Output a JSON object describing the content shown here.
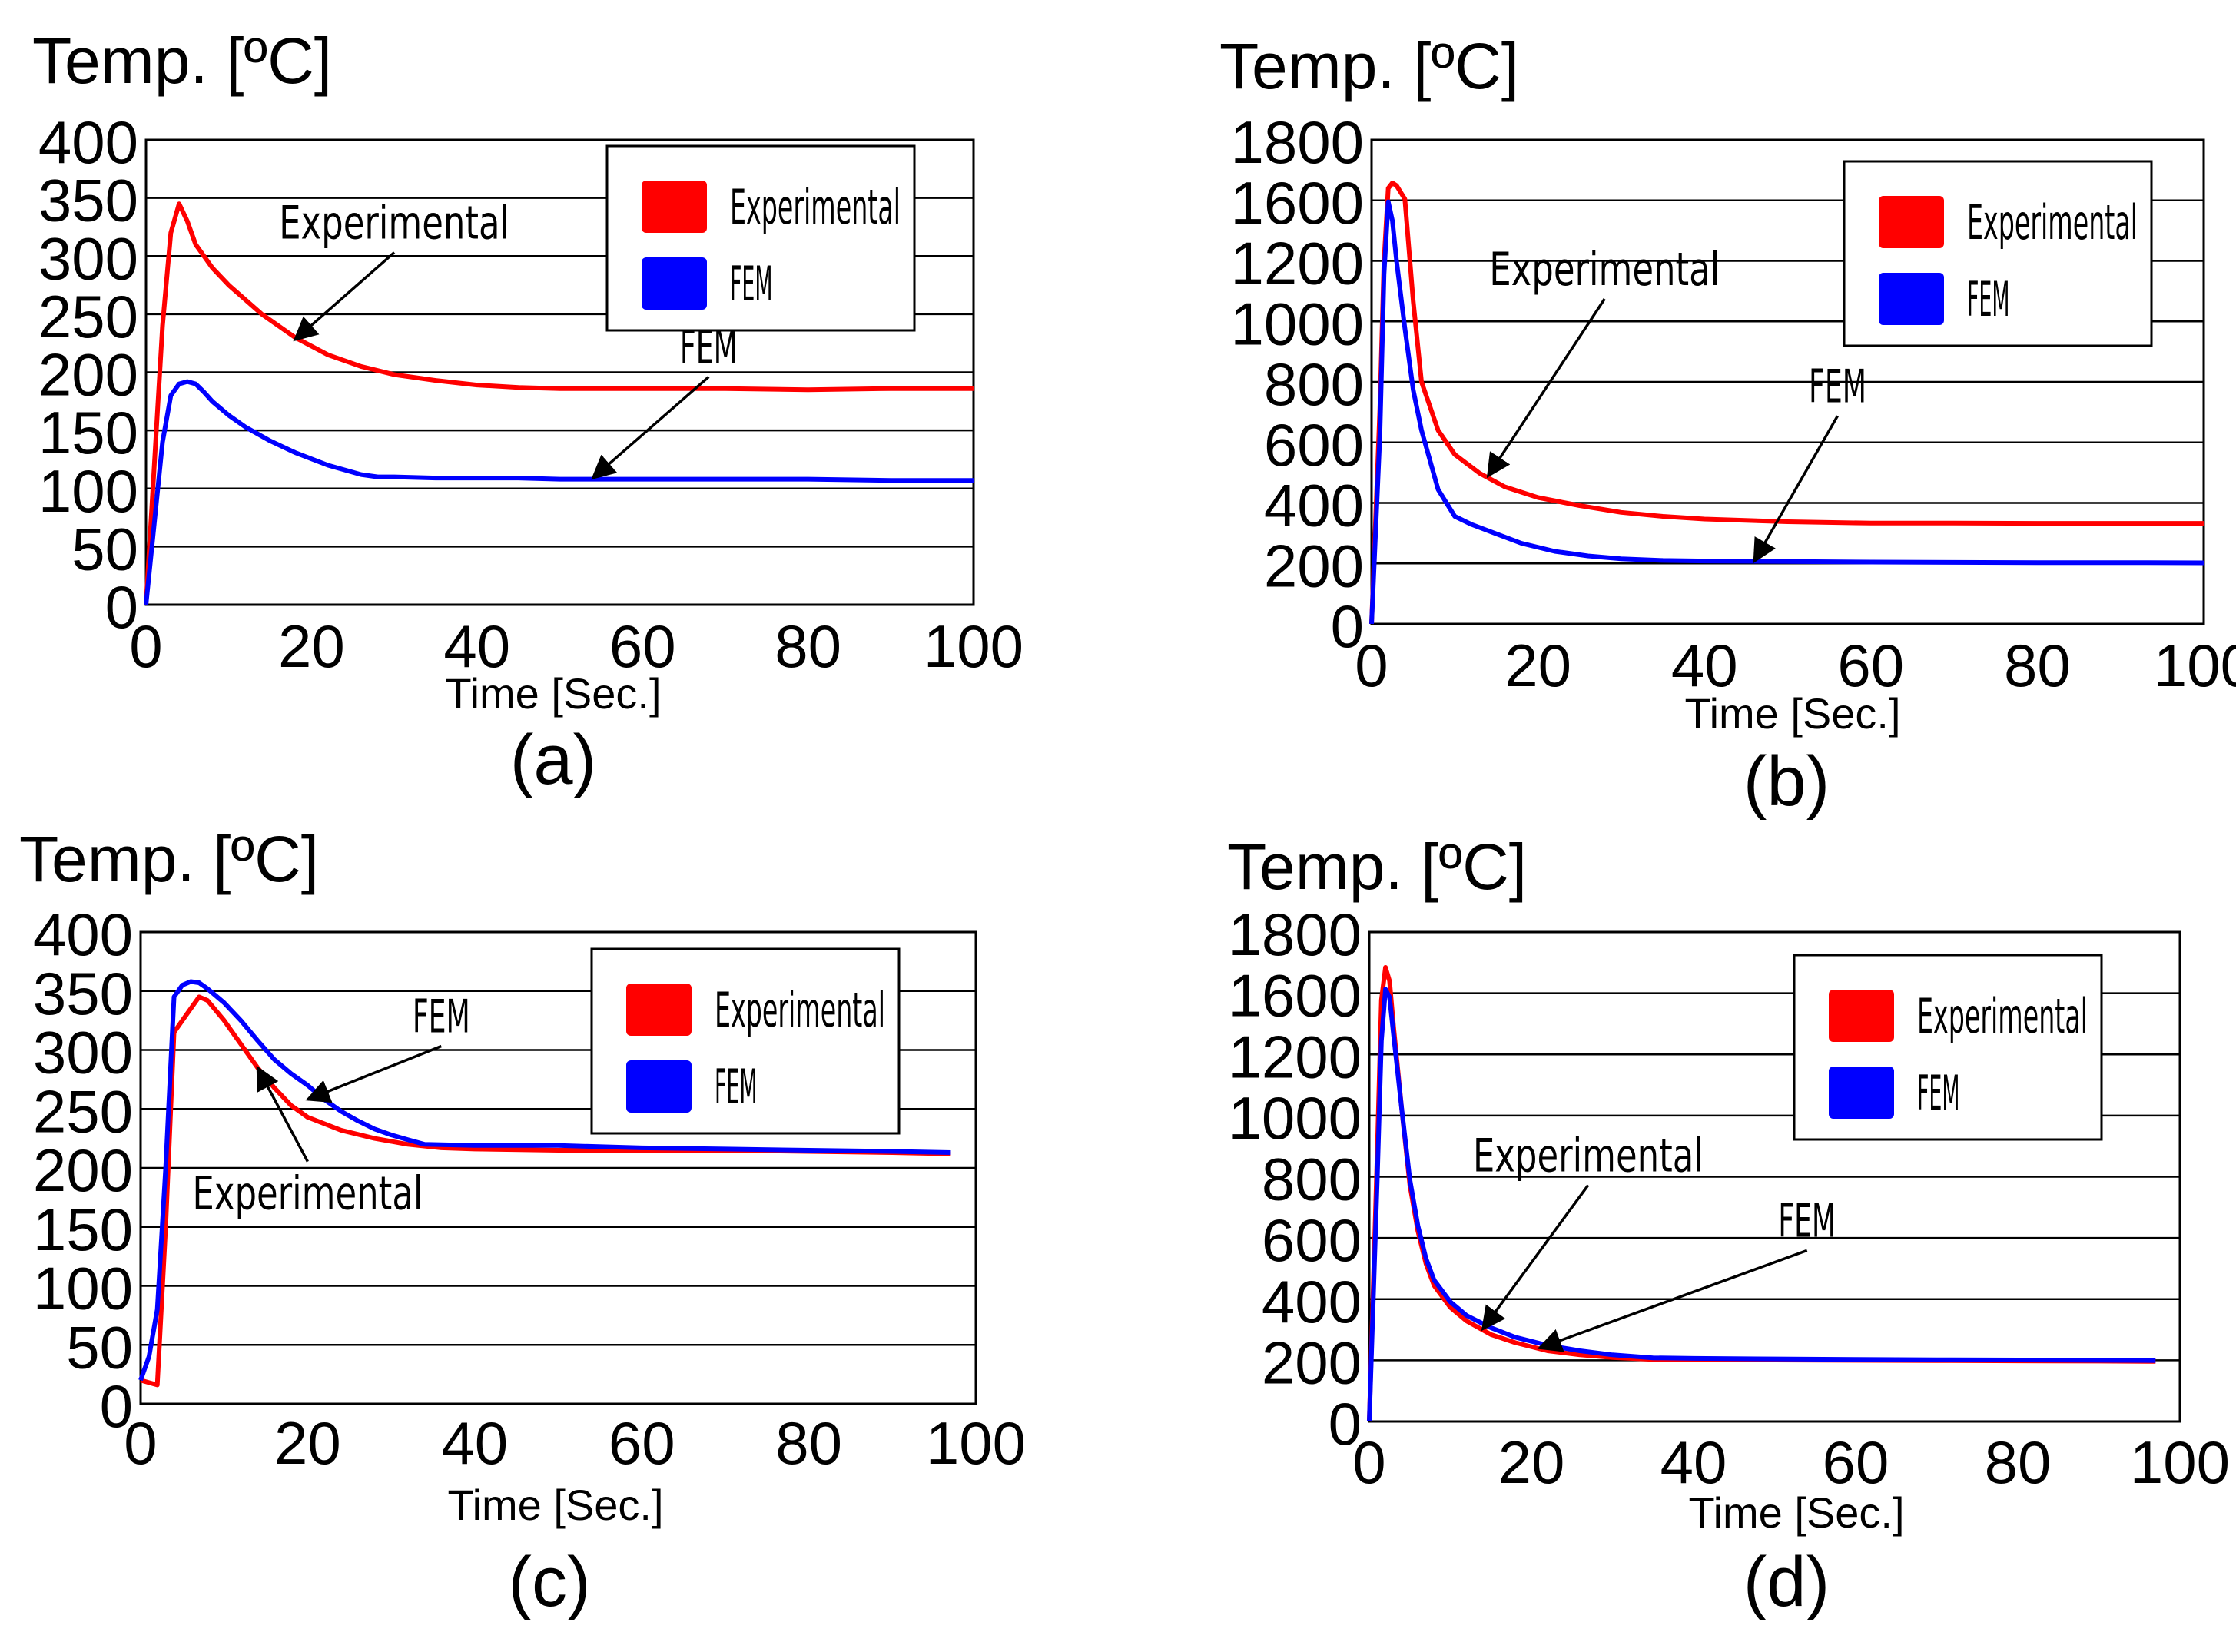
{
  "colors": {
    "experimental": "#ff0000",
    "fem": "#0000ff",
    "grid": "#000000",
    "frame": "#000000"
  },
  "chart_data": [
    {
      "type": "line",
      "panel_label": "(a)",
      "ylabel": "Temp. [ºC]",
      "xlabel": "Time [Sec.]",
      "xlim": [
        0,
        100
      ],
      "ylim": [
        0,
        400
      ],
      "xticks": [
        "0",
        "20",
        "40",
        "60",
        "80",
        "100"
      ],
      "yticks": [
        "0",
        "50",
        "100",
        "150",
        "200",
        "250",
        "300",
        "350",
        "400"
      ],
      "grid": true,
      "legend_position": "top-right",
      "series": [
        {
          "name": "Experimental",
          "color": "#ff0000",
          "x": [
            0,
            1,
            2,
            3,
            4,
            5,
            6,
            8,
            10,
            14,
            18,
            22,
            26,
            30,
            35,
            40,
            45,
            50,
            60,
            70,
            80,
            90,
            100
          ],
          "y": [
            0,
            120,
            240,
            320,
            345,
            330,
            310,
            290,
            275,
            250,
            230,
            215,
            205,
            198,
            193,
            189,
            187,
            186,
            186,
            186,
            185,
            186,
            186
          ]
        },
        {
          "name": "FEM",
          "color": "#0000ff",
          "x": [
            0,
            1,
            2,
            3,
            4,
            5,
            6,
            7,
            8,
            10,
            12,
            15,
            18,
            22,
            26,
            28,
            30,
            35,
            40,
            45,
            50,
            60,
            70,
            80,
            90,
            100
          ],
          "y": [
            0,
            70,
            140,
            180,
            190,
            192,
            190,
            183,
            175,
            163,
            153,
            141,
            131,
            120,
            112,
            110,
            110,
            109,
            109,
            109,
            108,
            108,
            108,
            108,
            107,
            107
          ]
        }
      ],
      "annotations": [
        {
          "text": "Experimental",
          "target_x": 18,
          "target_y": 228,
          "text_x": 30,
          "text_y": 315
        },
        {
          "text": "FEM",
          "target_x": 54,
          "target_y": 109,
          "text_x": 68,
          "text_y": 208
        }
      ]
    },
    {
      "type": "line",
      "panel_label": "(b)",
      "ylabel": "Temp. [ºC]",
      "xlabel": "Time [Sec.]",
      "xlim": [
        0,
        100
      ],
      "ylim": [
        0,
        1800
      ],
      "xticks": [
        "0",
        "20",
        "40",
        "60",
        "80",
        "100"
      ],
      "yticks": [
        "0",
        "200",
        "400",
        "600",
        "800",
        "1000",
        "1200",
        "1600",
        "1800"
      ],
      "grid": true,
      "legend_position": "top-right",
      "series": [
        {
          "name": "Experimental",
          "color": "#ff0000",
          "x": [
            0,
            1,
            1.5,
            2,
            2.5,
            3,
            4,
            5,
            6,
            8,
            10,
            13,
            16,
            20,
            25,
            30,
            35,
            40,
            50,
            60,
            70,
            80,
            90,
            100
          ],
          "y": [
            0,
            800,
            1350,
            1620,
            1640,
            1630,
            1580,
            1200,
            900,
            720,
            630,
            560,
            510,
            470,
            440,
            415,
            400,
            390,
            380,
            375,
            375,
            374,
            374,
            374
          ]
        },
        {
          "name": "FEM",
          "color": "#0000ff",
          "x": [
            0,
            1,
            1.5,
            2,
            2.5,
            3,
            4,
            5,
            6,
            8,
            10,
            12,
            15,
            18,
            22,
            26,
            30,
            35,
            40,
            50,
            60,
            70,
            80,
            90,
            100
          ],
          "y": [
            0,
            700,
            1300,
            1570,
            1500,
            1350,
            1100,
            870,
            720,
            500,
            400,
            370,
            335,
            300,
            270,
            253,
            242,
            236,
            234,
            232,
            230,
            229,
            228,
            228,
            227
          ]
        }
      ],
      "annotations": [
        {
          "text": "Experimental",
          "target_x": 14,
          "target_y": 550,
          "text_x": 28,
          "text_y": 1260
        },
        {
          "text": "FEM",
          "target_x": 46,
          "target_y": 233,
          "text_x": 56,
          "text_y": 825
        }
      ]
    },
    {
      "type": "line",
      "panel_label": "(c)",
      "ylabel": "Temp. [ºC]",
      "xlabel": "Time [Sec.]",
      "xlim": [
        0,
        100
      ],
      "ylim": [
        0,
        400
      ],
      "xticks": [
        "0",
        "20",
        "40",
        "60",
        "80",
        "100"
      ],
      "yticks": [
        "0",
        "50",
        "100",
        "150",
        "200",
        "250",
        "300",
        "350",
        "400"
      ],
      "grid": true,
      "legend_position": "top-right",
      "series": [
        {
          "name": "Experimental",
          "color": "#ff0000",
          "x": [
            0,
            1,
            2,
            3,
            4,
            5,
            6,
            7,
            8,
            10,
            12,
            14,
            16,
            18,
            20,
            24,
            28,
            32,
            36,
            40,
            50,
            60,
            70,
            80,
            90,
            97
          ],
          "y": [
            20,
            18,
            16,
            150,
            315,
            325,
            335,
            345,
            342,
            325,
            305,
            285,
            268,
            253,
            243,
            232,
            225,
            220,
            217,
            216,
            215,
            215,
            215,
            214,
            213,
            212
          ]
        },
        {
          "name": "FEM",
          "color": "#0000ff",
          "x": [
            0,
            1,
            2,
            3,
            4,
            5,
            6,
            7,
            8,
            10,
            12,
            14,
            16,
            18,
            20,
            22,
            24,
            26,
            28,
            30,
            32,
            34,
            40,
            50,
            60,
            70,
            80,
            90,
            97
          ],
          "y": [
            20,
            40,
            80,
            200,
            345,
            355,
            358,
            357,
            352,
            340,
            325,
            308,
            292,
            280,
            270,
            258,
            248,
            240,
            233,
            228,
            224,
            220,
            219,
            219,
            217,
            216,
            215,
            214,
            213
          ]
        }
      ],
      "annotations": [
        {
          "text": "FEM",
          "target_x": 20,
          "target_y": 258,
          "text_x": 36,
          "text_y": 315
        },
        {
          "text": "Experimental",
          "target_x": 14,
          "target_y": 285,
          "text_x": 20,
          "text_y": 165
        }
      ]
    },
    {
      "type": "line",
      "panel_label": "(d)",
      "ylabel": "Temp. [ºC]",
      "xlabel": "Time [Sec.]",
      "xlim": [
        0,
        100
      ],
      "ylim": [
        0,
        1800
      ],
      "xticks": [
        "0",
        "20",
        "40",
        "60",
        "80",
        "100"
      ],
      "yticks": [
        "0",
        "200",
        "400",
        "600",
        "800",
        "1000",
        "1200",
        "1600",
        "1800"
      ],
      "grid": true,
      "legend_position": "top-right",
      "series": [
        {
          "name": "Experimental",
          "color": "#ff0000",
          "x": [
            0,
            1,
            1.5,
            2,
            2.5,
            3,
            4,
            5,
            6,
            7,
            8,
            10,
            12,
            15,
            18,
            22,
            26,
            30,
            35,
            40,
            50,
            60,
            70,
            80,
            90,
            97
          ],
          "y": [
            0,
            1000,
            1550,
            1670,
            1620,
            1450,
            1150,
            870,
            700,
            580,
            500,
            420,
            370,
            320,
            290,
            260,
            245,
            235,
            228,
            227,
            226,
            225,
            224,
            223,
            222,
            221
          ]
        },
        {
          "name": "FEM",
          "color": "#0000ff",
          "x": [
            0,
            1,
            1.5,
            2,
            2.5,
            3,
            4,
            5,
            6,
            7,
            8,
            10,
            12,
            15,
            18,
            22,
            26,
            30,
            35,
            40,
            50,
            60,
            70,
            80,
            90,
            97
          ],
          "y": [
            0,
            900,
            1400,
            1590,
            1560,
            1420,
            1150,
            890,
            720,
            600,
            520,
            440,
            390,
            345,
            310,
            280,
            260,
            245,
            234,
            232,
            230,
            228,
            227,
            226,
            225,
            224
          ]
        }
      ],
      "annotations": [
        {
          "text": "Experimental",
          "target_x": 14,
          "target_y": 340,
          "text_x": 27,
          "text_y": 920
        },
        {
          "text": "FEM",
          "target_x": 21,
          "target_y": 270,
          "text_x": 54,
          "text_y": 680
        }
      ]
    }
  ]
}
